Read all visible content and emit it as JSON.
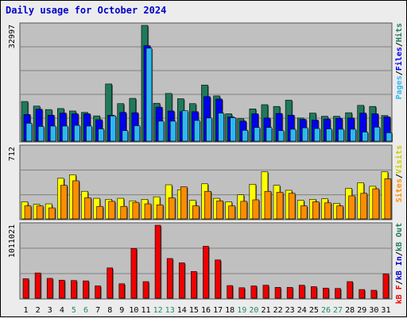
{
  "title": "Daily usage for October 2024",
  "colors": {
    "hits": "#1e7a5a",
    "files": "#0000ee",
    "pages": "#2eb8f0",
    "visits": "#ffff00",
    "sites": "#ff8c00",
    "kbin": "#1e7a5a",
    "kbout": "#0000cc",
    "kbf": "#ee0000",
    "weekend_label": "#1e8a6a",
    "weekday_label": "#000000"
  },
  "chart_data": [
    {
      "type": "bar",
      "name": "hits-files-pages",
      "max_label": "32997",
      "ylim": [
        0,
        32997
      ],
      "categories": [
        "1",
        "2",
        "3",
        "4",
        "5",
        "6",
        "7",
        "8",
        "9",
        "10",
        "11",
        "12",
        "13",
        "14",
        "15",
        "16",
        "17",
        "18",
        "19",
        "20",
        "21",
        "22",
        "23",
        "24",
        "25",
        "26",
        "27",
        "28",
        "29",
        "30",
        "31"
      ],
      "weekend_days": [
        "5",
        "6",
        "12",
        "13",
        "19",
        "20",
        "26",
        "27"
      ],
      "right_labels": [
        {
          "text": "Pages",
          "color": "#2eb8f0"
        },
        {
          "text": "/",
          "color": "#000000"
        },
        {
          "text": "Files",
          "color": "#0000ee"
        },
        {
          "text": "/",
          "color": "#000000"
        },
        {
          "text": "Hits",
          "color": "#1e7a5a"
        }
      ],
      "series": [
        {
          "name": "Hits",
          "values": [
            11300,
            10000,
            9000,
            9300,
            8600,
            8200,
            7200,
            16300,
            10700,
            12200,
            32997,
            10800,
            13600,
            12100,
            10700,
            16000,
            12900,
            7800,
            6400,
            9200,
            10400,
            9900,
            11700,
            6600,
            8000,
            7100,
            7100,
            8100,
            10200,
            9900,
            7300
          ]
        },
        {
          "name": "Files",
          "values": [
            7600,
            9100,
            7400,
            8000,
            7800,
            7800,
            6100,
            7400,
            8200,
            8100,
            27200,
            9700,
            8600,
            8400,
            8400,
            12700,
            12000,
            6900,
            5700,
            7800,
            6600,
            7900,
            7400,
            6200,
            6000,
            6300,
            6500,
            6600,
            8000,
            7800,
            6900
          ]
        },
        {
          "name": "Pages",
          "values": [
            5100,
            4200,
            4300,
            4300,
            4500,
            4300,
            3500,
            7200,
            3000,
            4400,
            26500,
            5700,
            5700,
            8700,
            5900,
            6600,
            8000,
            6700,
            3100,
            3900,
            3900,
            3000,
            3400,
            3800,
            3600,
            3500,
            3400,
            3400,
            2600,
            4000,
            2400
          ]
        }
      ]
    },
    {
      "type": "bar",
      "name": "visits-sites",
      "max_label": "712",
      "ylim": [
        0,
        712
      ],
      "right_labels": [
        {
          "text": "Sites",
          "color": "#ff8c00"
        },
        {
          "text": "/",
          "color": "#000000"
        },
        {
          "text": "Visits",
          "color": "#cccc00"
        }
      ],
      "series": [
        {
          "name": "Visits",
          "values": [
            170,
            145,
            150,
            405,
            440,
            275,
            205,
            195,
            205,
            180,
            195,
            220,
            340,
            290,
            185,
            350,
            205,
            170,
            240,
            345,
            470,
            335,
            285,
            185,
            195,
            200,
            155,
            305,
            360,
            325,
            470
          ]
        },
        {
          "name": "Sites",
          "values": [
            130,
            130,
            110,
            335,
            380,
            210,
            125,
            175,
            125,
            165,
            150,
            140,
            210,
            320,
            130,
            275,
            180,
            130,
            175,
            190,
            275,
            265,
            255,
            130,
            170,
            160,
            130,
            230,
            255,
            300,
            400
          ]
        }
      ]
    },
    {
      "type": "bar",
      "name": "kbytes",
      "max_label": "1011021",
      "ylim": [
        0,
        1011021
      ],
      "right_labels": [
        {
          "text": "kB F",
          "color": "#ee0000"
        },
        {
          "text": "/",
          "color": "#000000"
        },
        {
          "text": "kB In",
          "color": "#0000cc"
        },
        {
          "text": "/",
          "color": "#000000"
        },
        {
          "text": "kB Out",
          "color": "#1e7a5a"
        }
      ],
      "series": [
        {
          "name": "kB F",
          "values": [
            270000,
            350000,
            275000,
            250000,
            245000,
            240000,
            170000,
            420000,
            200000,
            690000,
            230000,
            1011021,
            550000,
            490000,
            370000,
            720000,
            530000,
            175000,
            145000,
            170000,
            180000,
            150000,
            150000,
            180000,
            160000,
            140000,
            135000,
            230000,
            120000,
            110000,
            335000
          ]
        }
      ]
    }
  ]
}
